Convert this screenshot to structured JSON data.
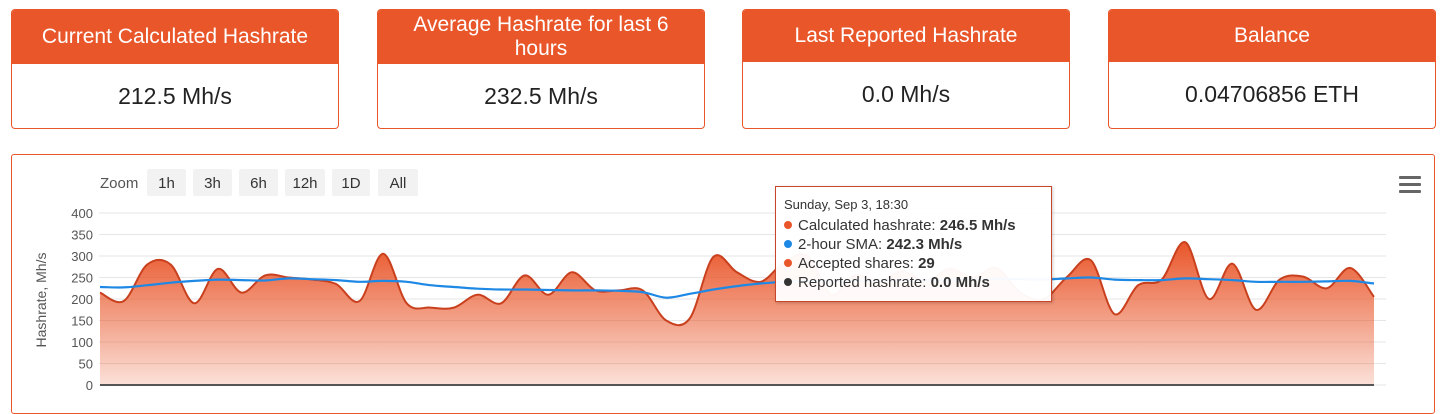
{
  "cards": [
    {
      "title": "Current Calculated Hashrate",
      "value": "212.5 Mh/s"
    },
    {
      "title": "Average Hashrate for last 6 hours",
      "value": "232.5 Mh/s"
    },
    {
      "title": "Last Reported Hashrate",
      "value": "0.0 Mh/s"
    },
    {
      "title": "Balance",
      "value": "0.04706856 ETH"
    }
  ],
  "zoom": {
    "label": "Zoom",
    "buttons": [
      "1h",
      "3h",
      "6h",
      "12h",
      "1D",
      "All"
    ]
  },
  "menu": {
    "icon": "hamburger-menu-icon"
  },
  "tooltip": {
    "title": "Sunday, Sep 3, 18:30",
    "rows": [
      {
        "label": "Calculated hashrate",
        "value": "246.5 Mh/s",
        "color": "#e9562a"
      },
      {
        "label": "2-hour SMA",
        "value": "242.3 Mh/s",
        "color": "#1e88e5"
      },
      {
        "label": "Accepted shares",
        "value": "29",
        "color": "#e9562a"
      },
      {
        "label": "Reported hashrate",
        "value": "0.0 Mh/s",
        "color": "#333333"
      }
    ]
  },
  "chart_data": {
    "type": "area",
    "ylabel": "Hashrate, Mh/s",
    "ylim": [
      -50,
      400
    ],
    "yticks": [
      400,
      350,
      300,
      250,
      200,
      150,
      100,
      50,
      0,
      -50
    ],
    "colors": {
      "calculated": "#e9562a",
      "sma": "#1e88e5",
      "reported": "#555555"
    },
    "series": [
      {
        "name": "Calculated hashrate",
        "values": [
          215,
          195,
          280,
          280,
          190,
          270,
          215,
          255,
          250,
          245,
          235,
          195,
          305,
          190,
          180,
          180,
          210,
          190,
          255,
          210,
          262,
          220,
          220,
          220,
          150,
          155,
          298,
          262,
          240,
          285,
          300,
          210,
          255,
          240,
          265,
          240,
          270,
          250,
          272,
          215,
          200,
          252,
          290,
          165,
          232,
          245,
          332,
          200,
          282,
          175,
          245,
          252,
          225,
          272,
          205
        ]
      },
      {
        "name": "2-hour SMA",
        "values": [
          228,
          227,
          232,
          238,
          242,
          245,
          244,
          243,
          248,
          246,
          244,
          240,
          242,
          240,
          232,
          228,
          224,
          222,
          222,
          221,
          220,
          220,
          219,
          216,
          203,
          212,
          222,
          230,
          236,
          240,
          242,
          242,
          243,
          244,
          244,
          244,
          244,
          245,
          246,
          246,
          245,
          248,
          250,
          245,
          244,
          244,
          248,
          246,
          244,
          240,
          240,
          240,
          241,
          242,
          236
        ]
      },
      {
        "name": "Reported hashrate",
        "values": [
          0,
          0,
          0,
          0,
          0,
          0,
          0,
          0,
          0,
          0,
          0,
          0,
          0,
          0,
          0,
          0,
          0,
          0,
          0,
          0,
          0,
          0,
          0,
          0,
          0,
          0,
          0,
          0,
          0,
          0,
          0,
          0,
          0,
          0,
          0,
          0,
          0,
          0,
          0,
          0,
          0,
          0,
          0,
          0,
          0,
          0,
          0,
          0,
          0,
          0,
          0,
          0,
          0,
          0,
          0
        ]
      }
    ]
  }
}
